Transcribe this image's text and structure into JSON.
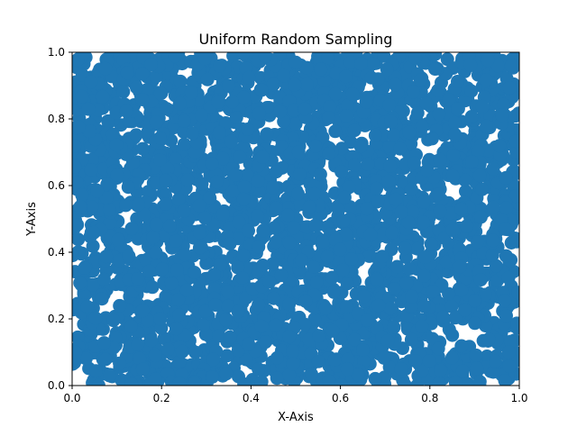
{
  "chart_data": {
    "type": "scatter",
    "title": "Uniform Random Sampling",
    "xlabel": "X-Axis",
    "ylabel": "Y-Axis",
    "xlim": [
      0,
      1
    ],
    "ylim": [
      0,
      1
    ],
    "xticks": [
      0.0,
      0.2,
      0.4,
      0.6,
      0.8,
      1.0
    ],
    "yticks": [
      0.0,
      0.2,
      0.4,
      0.6,
      0.8,
      1.0
    ],
    "xtick_labels": [
      "0.0",
      "0.2",
      "0.4",
      "0.6",
      "0.8",
      "1.0"
    ],
    "ytick_labels": [
      "0.0",
      "0.2",
      "0.4",
      "0.6",
      "0.8",
      "1.0"
    ],
    "grid": false,
    "legend": "none",
    "point_color": "#1f77b4",
    "series": [
      {
        "distribution": "uniform",
        "n_points": 3000,
        "seed": 42
      }
    ]
  }
}
